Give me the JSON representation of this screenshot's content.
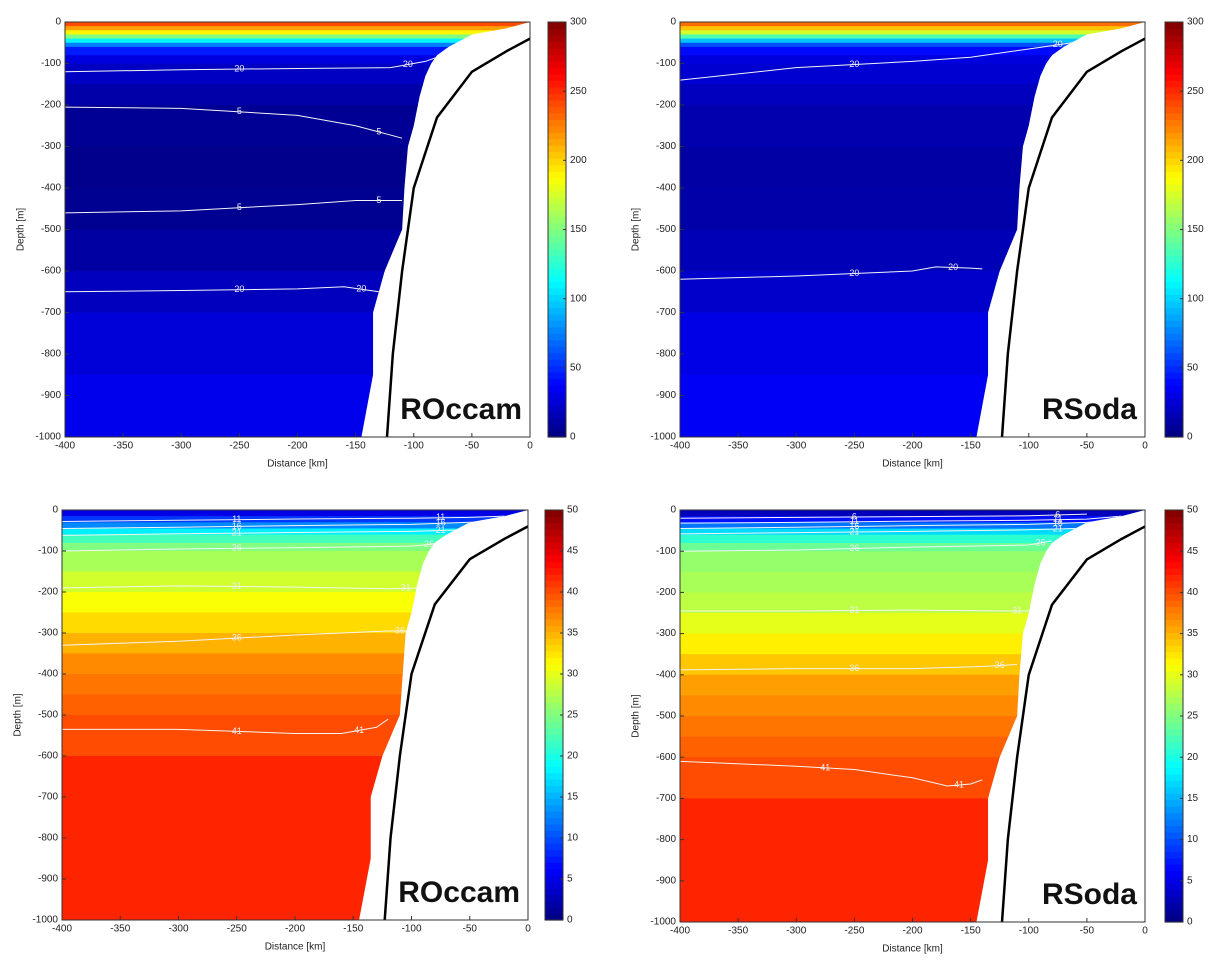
{
  "chart_data": [
    {
      "type": "contour",
      "label": "ROccam",
      "xlabel": "Distance [km]",
      "ylabel": "Depth [m]",
      "xlim": [
        -400,
        0
      ],
      "xticks": [
        -400,
        -350,
        -300,
        -250,
        -200,
        -150,
        -100,
        -50,
        0
      ],
      "ylim": [
        -1000,
        0
      ],
      "yticks": [
        -1000,
        -900,
        -800,
        -700,
        -600,
        -500,
        -400,
        -300,
        -200,
        -100,
        0
      ],
      "clim": [
        0,
        300
      ],
      "cticks": [
        0,
        50,
        100,
        150,
        200,
        250,
        300
      ],
      "profile": {
        "depth": [
          0,
          -10,
          -20,
          -30,
          -40,
          -50,
          -60,
          -80,
          -100,
          -150,
          -200,
          -300,
          -400,
          -500,
          -600,
          -700,
          -850
        ],
        "values": [
          240,
          215,
          190,
          150,
          110,
          75,
          45,
          28,
          20,
          12,
          6,
          4,
          5,
          10,
          18,
          26,
          32
        ]
      },
      "contours": [
        {
          "level": 20,
          "x": [
            -400,
            -300,
            -200,
            -120,
            -90,
            -70
          ],
          "y": [
            -120,
            -115,
            -112,
            -110,
            -95,
            -75
          ]
        },
        {
          "level": 5,
          "x": [
            -400,
            -300,
            -200,
            -150,
            -110
          ],
          "y": [
            -205,
            -208,
            -225,
            -250,
            -280
          ]
        },
        {
          "level": 5,
          "x": [
            -400,
            -300,
            -200,
            -150,
            -110
          ],
          "y": [
            -460,
            -455,
            -440,
            -430,
            -430
          ]
        },
        {
          "level": 20,
          "x": [
            -400,
            -300,
            -200,
            -160,
            -130
          ],
          "y": [
            -650,
            -647,
            -643,
            -638,
            -650
          ]
        }
      ],
      "coast": {
        "x": [
          0,
          -20,
          -50,
          -70,
          -80,
          -85,
          -90,
          -95,
          -100,
          -105,
          -108,
          -110,
          -125,
          -135,
          -135,
          -145
        ],
        "y": [
          0,
          -15,
          -30,
          -60,
          -80,
          -100,
          -130,
          -180,
          -250,
          -300,
          -400,
          -500,
          -600,
          -700,
          -850,
          -1000
        ]
      },
      "bathymetry": {
        "x": [
          0,
          -20,
          -50,
          -80,
          -100,
          -110,
          -118,
          -123
        ],
        "y": [
          -40,
          -70,
          -120,
          -230,
          -400,
          -600,
          -800,
          -1000
        ]
      }
    },
    {
      "type": "contour",
      "label": "RSoda",
      "xlabel": "Distance [km]",
      "ylabel": "Depth [m]",
      "xlim": [
        -400,
        0
      ],
      "xticks": [
        -400,
        -350,
        -300,
        -250,
        -200,
        -150,
        -100,
        -50,
        0
      ],
      "ylim": [
        -1000,
        0
      ],
      "yticks": [
        -1000,
        -900,
        -800,
        -700,
        -600,
        -500,
        -400,
        -300,
        -200,
        -100,
        0
      ],
      "clim": [
        0,
        300
      ],
      "cticks": [
        0,
        50,
        100,
        150,
        200,
        250,
        300
      ],
      "profile": {
        "depth": [
          0,
          -10,
          -20,
          -30,
          -40,
          -50,
          -60,
          -80,
          -100,
          -150,
          -200,
          -300,
          -400,
          -500,
          -600,
          -700,
          -850
        ],
        "values": [
          230,
          205,
          175,
          135,
          95,
          60,
          40,
          28,
          24,
          18,
          14,
          11,
          12,
          16,
          22,
          30,
          35
        ]
      },
      "contours": [
        {
          "level": 20,
          "x": [
            -400,
            -300,
            -200,
            -150,
            -100,
            -50,
            -20
          ],
          "y": [
            -140,
            -110,
            -95,
            -85,
            -65,
            -45,
            -30
          ]
        },
        {
          "level": 20,
          "x": [
            -400,
            -300,
            -200,
            -180,
            -150,
            -140
          ],
          "y": [
            -620,
            -612,
            -600,
            -590,
            -593,
            -595
          ]
        }
      ],
      "coast": {
        "x": [
          0,
          -20,
          -50,
          -70,
          -80,
          -85,
          -90,
          -95,
          -100,
          -105,
          -108,
          -110,
          -125,
          -135,
          -135,
          -145
        ],
        "y": [
          0,
          -15,
          -30,
          -60,
          -80,
          -100,
          -130,
          -180,
          -250,
          -300,
          -400,
          -500,
          -600,
          -700,
          -850,
          -1000
        ]
      },
      "bathymetry": {
        "x": [
          0,
          -20,
          -50,
          -80,
          -100,
          -110,
          -118,
          -123
        ],
        "y": [
          -40,
          -70,
          -120,
          -230,
          -400,
          -600,
          -800,
          -1000
        ]
      }
    },
    {
      "type": "contour",
      "label": "ROccam",
      "xlabel": "Distance [km]",
      "ylabel": "Depth [m]",
      "xlim": [
        -400,
        0
      ],
      "xticks": [
        -400,
        -350,
        -300,
        -250,
        -200,
        -150,
        -100,
        -50,
        0
      ],
      "ylim": [
        -1000,
        0
      ],
      "yticks": [
        -1000,
        -900,
        -800,
        -700,
        -600,
        -500,
        -400,
        -300,
        -200,
        -100,
        0
      ],
      "clim": [
        0,
        50
      ],
      "cticks": [
        0,
        5,
        10,
        15,
        20,
        25,
        30,
        35,
        40,
        45,
        50
      ],
      "profile": {
        "depth": [
          0,
          -15,
          -30,
          -45,
          -60,
          -80,
          -100,
          -150,
          -200,
          -250,
          -300,
          -350,
          -400,
          -450,
          -500,
          -600
        ],
        "values": [
          5,
          9,
          13,
          18,
          22,
          25,
          27,
          29,
          31,
          33,
          35,
          37,
          38,
          39,
          40,
          42
        ]
      },
      "contours": [
        {
          "level": 11,
          "x": [
            -400,
            -300,
            -200,
            -100,
            -50,
            -20
          ],
          "y": [
            -28,
            -25,
            -22,
            -20,
            -18,
            -15
          ]
        },
        {
          "level": 16,
          "x": [
            -400,
            -300,
            -200,
            -100,
            -50,
            -20
          ],
          "y": [
            -45,
            -42,
            -38,
            -35,
            -30,
            -25
          ]
        },
        {
          "level": 21,
          "x": [
            -400,
            -300,
            -200,
            -100,
            -50,
            -25
          ],
          "y": [
            -62,
            -58,
            -55,
            -52,
            -48,
            -40
          ]
        },
        {
          "level": 26,
          "x": [
            -400,
            -300,
            -200,
            -100,
            -70,
            -50
          ],
          "y": [
            -100,
            -95,
            -92,
            -88,
            -80,
            -70
          ]
        },
        {
          "level": 31,
          "x": [
            -400,
            -300,
            -200,
            -120,
            -90
          ],
          "y": [
            -190,
            -185,
            -188,
            -192,
            -190
          ]
        },
        {
          "level": 36,
          "x": [
            -400,
            -300,
            -200,
            -120,
            -100
          ],
          "y": [
            -330,
            -320,
            -305,
            -295,
            -295
          ]
        },
        {
          "level": 41,
          "x": [
            -400,
            -300,
            -200,
            -160,
            -130,
            -120
          ],
          "y": [
            -535,
            -535,
            -545,
            -545,
            -530,
            -510
          ]
        }
      ],
      "coast": {
        "x": [
          0,
          -20,
          -50,
          -70,
          -80,
          -85,
          -90,
          -95,
          -100,
          -105,
          -110,
          -125,
          -135,
          -135,
          -145
        ],
        "y": [
          0,
          -15,
          -30,
          -60,
          -80,
          -100,
          -130,
          -180,
          -250,
          -300,
          -500,
          -600,
          -700,
          -850,
          -1000
        ]
      },
      "bathymetry": {
        "x": [
          0,
          -20,
          -50,
          -80,
          -100,
          -110,
          -118,
          -123
        ],
        "y": [
          -40,
          -70,
          -120,
          -230,
          -400,
          -600,
          -800,
          -1000
        ]
      }
    },
    {
      "type": "contour",
      "label": "RSoda",
      "xlabel": "Distance [km]",
      "ylabel": "Depth [m]",
      "xlim": [
        -400,
        0
      ],
      "xticks": [
        -400,
        -350,
        -300,
        -250,
        -200,
        -150,
        -100,
        -50,
        0
      ],
      "ylim": [
        -1000,
        0
      ],
      "yticks": [
        -1000,
        -900,
        -800,
        -700,
        -600,
        -500,
        -400,
        -300,
        -200,
        -100,
        0
      ],
      "clim": [
        0,
        50
      ],
      "cticks": [
        0,
        5,
        10,
        15,
        20,
        25,
        30,
        35,
        40,
        45,
        50
      ],
      "profile": {
        "depth": [
          0,
          -15,
          -30,
          -45,
          -60,
          -80,
          -100,
          -150,
          -200,
          -250,
          -300,
          -350,
          -400,
          -450,
          -500,
          -550,
          -600,
          -700
        ],
        "values": [
          3,
          7,
          12,
          17,
          21,
          24,
          26,
          27,
          28,
          30,
          32,
          34,
          36,
          37,
          38,
          39,
          40,
          42
        ]
      },
      "contours": [
        {
          "level": 6,
          "x": [
            -400,
            -300,
            -200,
            -100,
            -50
          ],
          "y": [
            -20,
            -18,
            -16,
            -14,
            -10
          ]
        },
        {
          "level": 11,
          "x": [
            -400,
            -300,
            -200,
            -100,
            -50,
            -20
          ],
          "y": [
            -32,
            -30,
            -27,
            -25,
            -22,
            -15
          ]
        },
        {
          "level": 16,
          "x": [
            -400,
            -300,
            -200,
            -100,
            -50,
            -20
          ],
          "y": [
            -45,
            -42,
            -38,
            -35,
            -30,
            -25
          ]
        },
        {
          "level": 21,
          "x": [
            -400,
            -300,
            -200,
            -100,
            -50,
            -25
          ],
          "y": [
            -58,
            -55,
            -52,
            -48,
            -44,
            -38
          ]
        },
        {
          "level": 26,
          "x": [
            -400,
            -300,
            -200,
            -100,
            -80
          ],
          "y": [
            -100,
            -97,
            -90,
            -85,
            -75
          ]
        },
        {
          "level": 31,
          "x": [
            -400,
            -300,
            -200,
            -120,
            -100
          ],
          "y": [
            -245,
            -245,
            -243,
            -245,
            -245
          ]
        },
        {
          "level": 36,
          "x": [
            -400,
            -300,
            -200,
            -140,
            -110
          ],
          "y": [
            -388,
            -385,
            -385,
            -380,
            -375
          ]
        },
        {
          "level": 41,
          "x": [
            -400,
            -300,
            -250,
            -200,
            -170,
            -150,
            -140
          ],
          "y": [
            -610,
            -622,
            -630,
            -650,
            -670,
            -665,
            -655
          ]
        }
      ],
      "coast": {
        "x": [
          0,
          -20,
          -50,
          -70,
          -80,
          -85,
          -90,
          -95,
          -100,
          -105,
          -108,
          -110,
          -125,
          -135,
          -135,
          -145
        ],
        "y": [
          0,
          -15,
          -30,
          -60,
          -80,
          -100,
          -130,
          -180,
          -250,
          -300,
          -400,
          -500,
          -600,
          -700,
          -850,
          -1000
        ]
      },
      "bathymetry": {
        "x": [
          0,
          -20,
          -50,
          -80,
          -100,
          -110,
          -118,
          -123
        ],
        "y": [
          -40,
          -70,
          -120,
          -230,
          -400,
          -600,
          -800,
          -1000
        ]
      }
    }
  ]
}
